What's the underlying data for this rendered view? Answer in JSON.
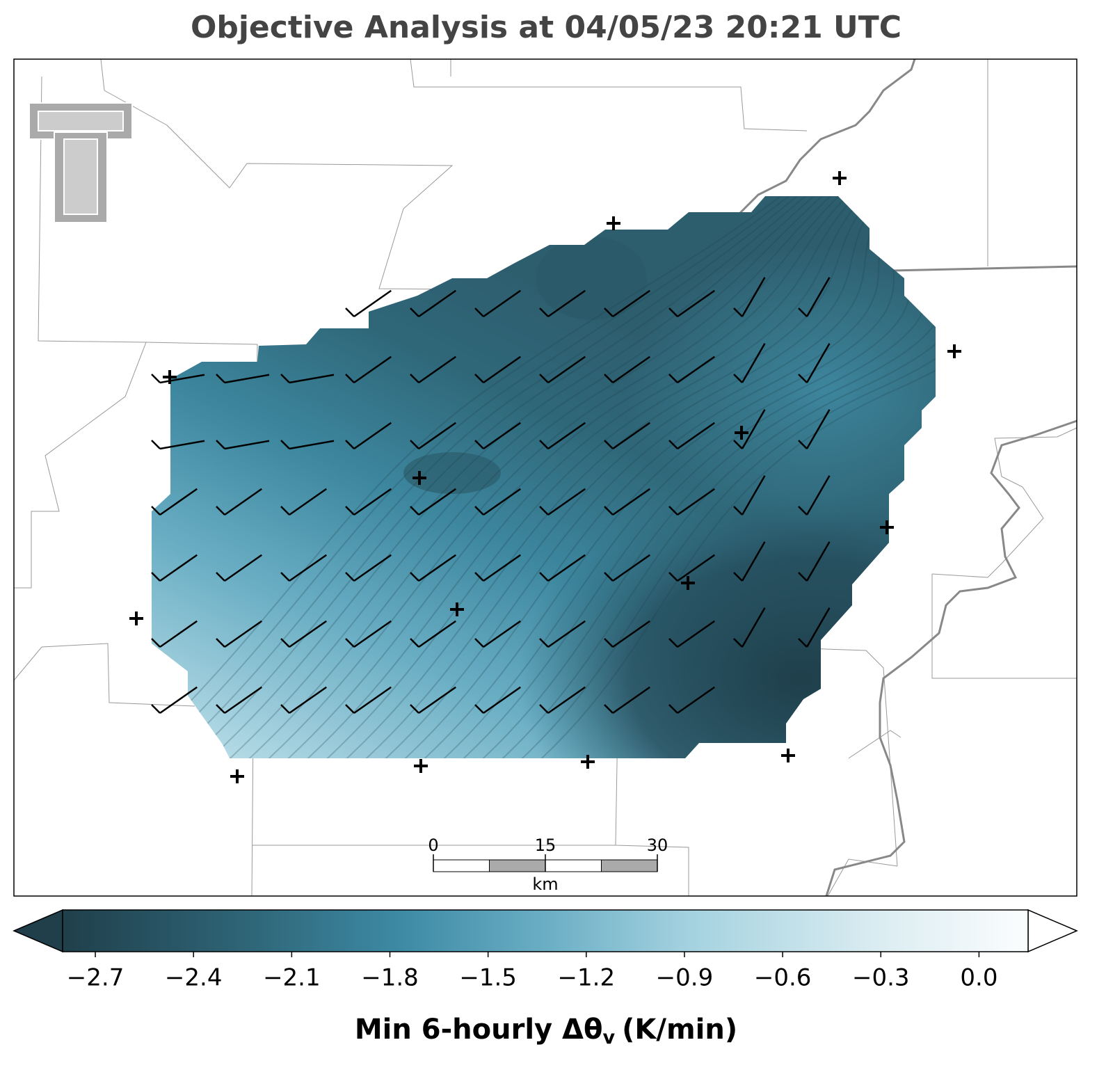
{
  "title": "Objective Analysis at 04/05/23 20:21 UTC",
  "colorbar": {
    "label_main": "Min 6-hourly Δθ",
    "label_sub": "v",
    "label_unit": "(K/min)",
    "range": [
      -2.8,
      0.15
    ],
    "ticks": [
      {
        "value": -2.7,
        "label": "−2.7"
      },
      {
        "value": -2.4,
        "label": "−2.4"
      },
      {
        "value": -2.1,
        "label": "−2.1"
      },
      {
        "value": -1.8,
        "label": "−1.8"
      },
      {
        "value": -1.5,
        "label": "−1.5"
      },
      {
        "value": -1.2,
        "label": "−1.2"
      },
      {
        "value": -0.9,
        "label": "−0.9"
      },
      {
        "value": -0.6,
        "label": "−0.6"
      },
      {
        "value": -0.3,
        "label": "−0.3"
      },
      {
        "value": 0,
        "label": "0.0"
      }
    ]
  },
  "scale_bar": {
    "ticks": [
      0,
      15,
      30
    ],
    "unit": "km"
  }
}
